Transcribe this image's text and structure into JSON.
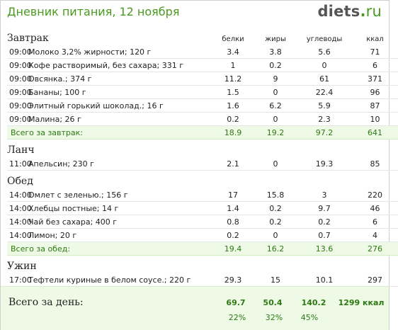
{
  "header": {
    "title": "Дневник питания, 12 ноября",
    "logo_main": "diets",
    "logo_dot": ".",
    "logo_tld": "ru"
  },
  "columns": {
    "protein": "белки",
    "fat": "жиры",
    "carbs": "углеводы",
    "kcal": "ккал"
  },
  "meals": [
    {
      "name": "Завтрак",
      "items": [
        {
          "time": "09:00",
          "food": "Молоко 3,2% жирности; 120 г",
          "protein": "3.4",
          "fat": "3.8",
          "carbs": "5.6",
          "kcal": "71"
        },
        {
          "time": "09:00",
          "food": "Кофе растворимый, без сахара; 331 г",
          "protein": "1",
          "fat": "0.2",
          "carbs": "0",
          "kcal": "6"
        },
        {
          "time": "09:00",
          "food": "Овсянка.; 374 г",
          "protein": "11.2",
          "fat": "9",
          "carbs": "61",
          "kcal": "371"
        },
        {
          "time": "09:00",
          "food": "Бананы; 100 г",
          "protein": "1.5",
          "fat": "0",
          "carbs": "22.4",
          "kcal": "96"
        },
        {
          "time": "09:00",
          "food": "Элитный горький шоколад.; 16 г",
          "protein": "1.6",
          "fat": "6.2",
          "carbs": "5.9",
          "kcal": "87"
        },
        {
          "time": "09:00",
          "food": "Малина; 26 г",
          "protein": "0.2",
          "fat": "0",
          "carbs": "2.3",
          "kcal": "10"
        }
      ],
      "total": {
        "label": "Всего за завтрак:",
        "protein": "18.9",
        "fat": "19.2",
        "carbs": "97.2",
        "kcal": "641"
      }
    },
    {
      "name": "Ланч",
      "items": [
        {
          "time": "11:00",
          "food": "Апельсин; 230 г",
          "protein": "2.1",
          "fat": "0",
          "carbs": "19.3",
          "kcal": "85"
        }
      ]
    },
    {
      "name": "Обед",
      "items": [
        {
          "time": "14:00",
          "food": "Омлет с зеленью.; 156 г",
          "protein": "17",
          "fat": "15.8",
          "carbs": "3",
          "kcal": "220"
        },
        {
          "time": "14:00",
          "food": "Хлебцы постные; 14 г",
          "protein": "1.4",
          "fat": "0.2",
          "carbs": "9.7",
          "kcal": "46"
        },
        {
          "time": "14:00",
          "food": "Чай без сахара; 400 г",
          "protein": "0.8",
          "fat": "0.2",
          "carbs": "0.2",
          "kcal": "6"
        },
        {
          "time": "14:00",
          "food": "Лимон; 20 г",
          "protein": "0.2",
          "fat": "0",
          "carbs": "0.7",
          "kcal": "4"
        }
      ],
      "total": {
        "label": "Всего за обед:",
        "protein": "19.4",
        "fat": "16.2",
        "carbs": "13.6",
        "kcal": "276"
      }
    },
    {
      "name": "Ужин",
      "items": [
        {
          "time": "17:00",
          "food": "Тефтели куриные в белом соусе.; 220 г",
          "protein": "29.3",
          "fat": "15",
          "carbs": "10.1",
          "kcal": "297"
        }
      ]
    }
  ],
  "day_total": {
    "label": "Всего за день:",
    "protein": "69.7",
    "fat": "50.4",
    "carbs": "140.2",
    "kcal": "1299 ккал",
    "protein_pct": "22%",
    "fat_pct": "32%",
    "carbs_pct": "45%"
  }
}
